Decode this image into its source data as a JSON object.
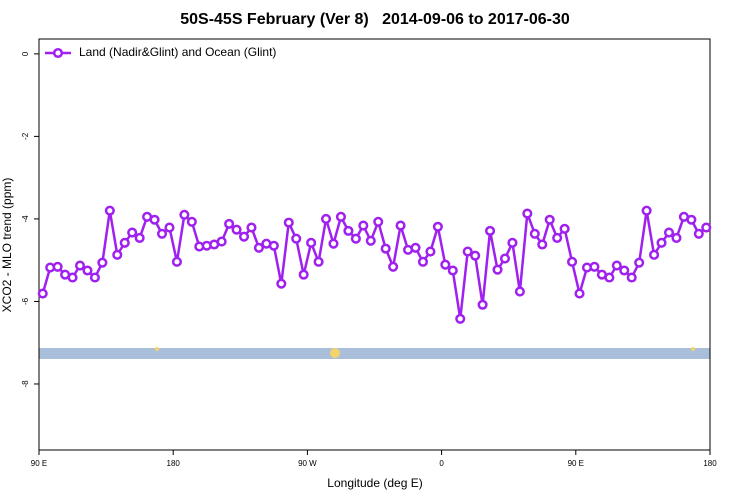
{
  "chart_data": {
    "type": "line",
    "title": "50S-45S February (Ver 8)   2014-09-06 to 2017-06-30",
    "x_label": "Longitude (deg E)",
    "y_label": "XCO2 - MLO trend (ppm)",
    "xlim": [
      90,
      540
    ],
    "ylim": [
      -9.6,
      0.36
    ],
    "xticks": [
      {
        "value": 90,
        "label": "90 E"
      },
      180,
      {
        "value": 270,
        "label": "90 W"
      },
      {
        "value": 360,
        "label": "0"
      },
      {
        "value": 450,
        "label": "90 E"
      },
      {
        "value": 540,
        "label": "180"
      }
    ],
    "yticks": [
      0,
      -2,
      -4,
      -6,
      -8
    ],
    "legend_position": "top-left",
    "x": [
      92.5,
      97.5,
      102.5,
      107.5,
      112.5,
      117.5,
      122.5,
      127.5,
      132.5,
      137.5,
      142.5,
      147.5,
      152.5,
      157.5,
      162.5,
      167.5,
      172.5,
      177.5,
      182.5,
      187.5,
      192.5,
      197.5,
      202.5,
      207.5,
      212.5,
      217.5,
      222.5,
      227.5,
      232.5,
      237.5,
      242.5,
      247.5,
      252.5,
      257.5,
      262.5,
      267.5,
      272.5,
      277.5,
      282.5,
      287.5,
      292.5,
      297.5,
      302.5,
      307.5,
      312.5,
      317.5,
      322.5,
      327.5,
      332.5,
      337.5,
      342.5,
      347.5,
      352.5,
      357.5,
      362.5,
      367.5,
      372.5,
      377.5,
      382.5,
      387.5,
      392.5,
      397.5,
      402.5,
      407.5,
      412.5,
      417.5,
      422.5,
      427.5,
      432.5,
      437.5,
      442.5,
      447.5,
      452.5,
      457.5,
      462.5,
      467.5,
      472.5,
      477.5,
      482.5,
      487.5,
      492.5,
      497.5,
      502.5,
      507.5,
      512.5,
      517.5,
      522.5,
      527.5,
      532.5,
      537.5
    ],
    "series": [
      {
        "name": "Land (Nadir&Glint) and Ocean (Glint)",
        "color": "#a020f0",
        "values": [
          -5.81,
          -5.18,
          -5.16,
          -5.35,
          -5.42,
          -5.13,
          -5.25,
          -5.42,
          -5.06,
          -3.8,
          -4.87,
          -4.58,
          -4.33,
          -4.46,
          -3.95,
          -4.02,
          -4.36,
          -4.21,
          -5.04,
          -3.9,
          -4.07,
          -4.67,
          -4.65,
          -4.62,
          -4.55,
          -4.12,
          -4.26,
          -4.43,
          -4.21,
          -4.7,
          -4.6,
          -4.65,
          -5.57,
          -4.09,
          -4.48,
          -5.35,
          -4.58,
          -5.04,
          -4.0,
          -4.6,
          -3.95,
          -4.29,
          -4.48,
          -4.16,
          -4.53,
          -4.07,
          -4.72,
          -5.16,
          -4.16,
          -4.75,
          -4.7,
          -5.04,
          -4.79,
          -4.19,
          -5.11,
          -5.25,
          -6.42,
          -4.79,
          -4.89,
          -6.08,
          -4.29,
          -5.23,
          -4.96,
          -4.58,
          -5.76,
          -3.87,
          -4.36,
          -4.62,
          -4.02,
          -4.46,
          -4.24,
          -5.04,
          -5.81,
          -5.18,
          -5.16,
          -5.35,
          -5.42,
          -5.13,
          -5.25,
          -5.42,
          -5.06,
          -3.8,
          -4.87,
          -4.58,
          -4.33,
          -4.46,
          -3.95,
          -4.02,
          -4.36,
          -4.21
        ]
      }
    ]
  }
}
